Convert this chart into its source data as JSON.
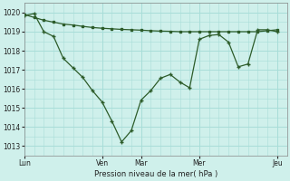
{
  "bg_color": "#cff0eb",
  "grid_color": "#a8ddd8",
  "line_color": "#2d5c2a",
  "xlabel": "Pression niveau de la mer( hPa )",
  "ylim": [
    1012.5,
    1020.5
  ],
  "yticks": [
    1013,
    1014,
    1015,
    1016,
    1017,
    1018,
    1019,
    1020
  ],
  "day_labels": [
    "Lun",
    "",
    "Ven",
    "Mar",
    "",
    "Mer",
    "",
    "Jeu"
  ],
  "day_positions": [
    0,
    4,
    8,
    12,
    16,
    18,
    22,
    26
  ],
  "xlim": [
    0,
    27
  ],
  "line1_x": [
    0,
    1,
    2,
    3,
    4,
    5,
    6,
    7,
    8,
    9,
    10,
    11,
    12,
    13,
    14,
    15,
    16,
    17,
    18,
    19,
    20,
    21,
    22,
    23,
    24,
    25,
    26
  ],
  "line1_y": [
    1019.9,
    1019.75,
    1019.6,
    1019.5,
    1019.4,
    1019.35,
    1019.28,
    1019.22,
    1019.18,
    1019.15,
    1019.12,
    1019.1,
    1019.08,
    1019.05,
    1019.03,
    1019.02,
    1019.0,
    1019.0,
    1019.0,
    1019.0,
    1019.0,
    1019.0,
    1019.0,
    1019.0,
    1019.0,
    1019.05,
    1019.1
  ],
  "line2_x": [
    0,
    1,
    2,
    3,
    4,
    5,
    6,
    7,
    8,
    9,
    10,
    11,
    12,
    13,
    14,
    15,
    16,
    17,
    18,
    19,
    20,
    21,
    22,
    23,
    24,
    25,
    26
  ],
  "line2_y": [
    1019.85,
    1019.95,
    1019.0,
    1018.75,
    1017.6,
    1017.1,
    1016.6,
    1015.9,
    1015.3,
    1014.3,
    1013.2,
    1013.8,
    1015.4,
    1015.9,
    1016.55,
    1016.75,
    1016.35,
    1016.05,
    1018.6,
    1018.8,
    1018.85,
    1018.45,
    1017.15,
    1017.3,
    1019.1,
    1019.1,
    1019.0
  ]
}
